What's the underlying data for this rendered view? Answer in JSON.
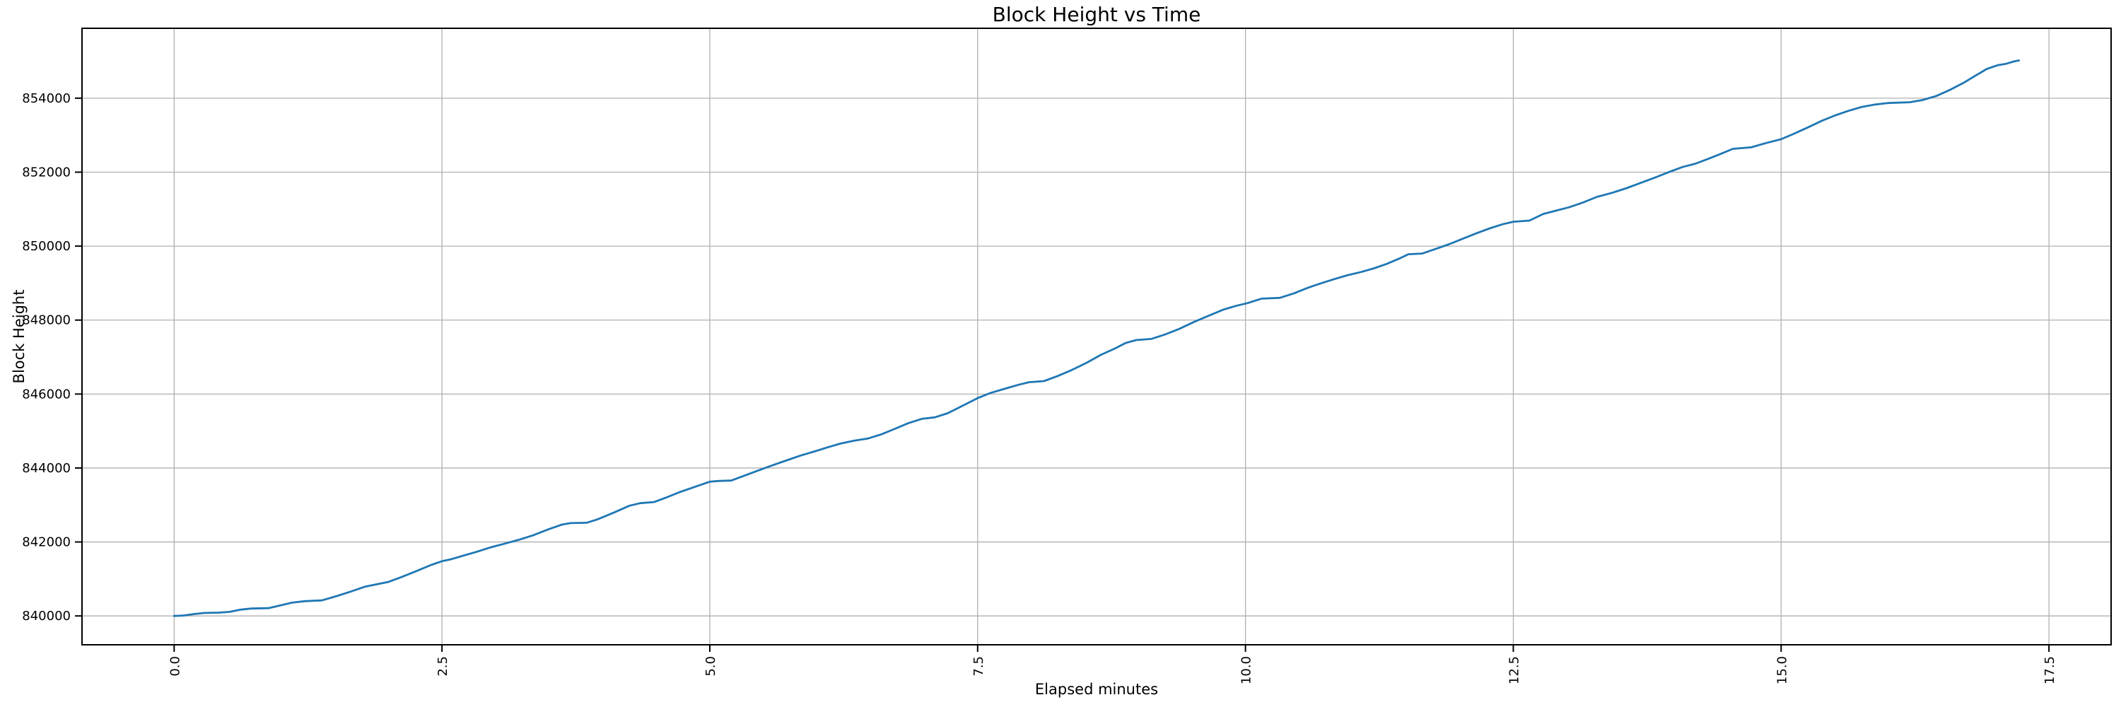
{
  "figure": {
    "background": "#ffffff"
  },
  "chart_data": {
    "type": "line",
    "title": "Block Height vs Time",
    "xlabel": "Elapsed minutes",
    "ylabel": "Block Height",
    "grid": true,
    "grid_color": "#b0b0b0",
    "axis_color": "#000000",
    "legend": false,
    "xlim": [
      -0.86,
      18.08
    ],
    "ylim": [
      839220,
      855890
    ],
    "xticks": {
      "values": [
        0.0,
        2.5,
        5.0,
        7.5,
        10.0,
        12.5,
        15.0,
        17.5
      ],
      "labels": [
        "0.0",
        "2.5",
        "5.0",
        "7.5",
        "10.0",
        "12.5",
        "15.0",
        "17.5"
      ],
      "rotation_deg": 90
    },
    "yticks": {
      "values": [
        840000,
        842000,
        844000,
        846000,
        848000,
        850000,
        852000,
        854000
      ],
      "labels": [
        "840000",
        "842000",
        "844000",
        "846000",
        "848000",
        "850000",
        "852000",
        "854000"
      ]
    },
    "series": [
      {
        "name": "block-height",
        "color": "#1f77b4",
        "points": [
          [
            0.0,
            840000
          ],
          [
            0.08,
            840010
          ],
          [
            0.18,
            840050
          ],
          [
            0.28,
            840080
          ],
          [
            0.42,
            840090
          ],
          [
            0.52,
            840110
          ],
          [
            0.62,
            840170
          ],
          [
            0.72,
            840200
          ],
          [
            0.88,
            840210
          ],
          [
            1.0,
            840290
          ],
          [
            1.1,
            840360
          ],
          [
            1.22,
            840400
          ],
          [
            1.38,
            840420
          ],
          [
            1.52,
            840540
          ],
          [
            1.65,
            840660
          ],
          [
            1.78,
            840790
          ],
          [
            1.88,
            840850
          ],
          [
            2.0,
            840920
          ],
          [
            2.12,
            841050
          ],
          [
            2.25,
            841200
          ],
          [
            2.4,
            841380
          ],
          [
            2.5,
            841480
          ],
          [
            2.58,
            841530
          ],
          [
            2.7,
            841630
          ],
          [
            2.82,
            841730
          ],
          [
            2.95,
            841850
          ],
          [
            3.08,
            841950
          ],
          [
            3.22,
            842060
          ],
          [
            3.35,
            842180
          ],
          [
            3.5,
            842350
          ],
          [
            3.62,
            842470
          ],
          [
            3.7,
            842510
          ],
          [
            3.85,
            842520
          ],
          [
            3.95,
            842610
          ],
          [
            4.1,
            842790
          ],
          [
            4.25,
            842980
          ],
          [
            4.35,
            843050
          ],
          [
            4.48,
            843080
          ],
          [
            4.6,
            843210
          ],
          [
            4.72,
            843350
          ],
          [
            4.85,
            843480
          ],
          [
            5.0,
            843630
          ],
          [
            5.08,
            843650
          ],
          [
            5.2,
            843660
          ],
          [
            5.32,
            843790
          ],
          [
            5.45,
            843930
          ],
          [
            5.6,
            844090
          ],
          [
            5.72,
            844210
          ],
          [
            5.85,
            844340
          ],
          [
            5.98,
            844450
          ],
          [
            6.1,
            844560
          ],
          [
            6.22,
            844660
          ],
          [
            6.35,
            844740
          ],
          [
            6.48,
            844800
          ],
          [
            6.6,
            844910
          ],
          [
            6.72,
            845050
          ],
          [
            6.85,
            845210
          ],
          [
            6.98,
            845330
          ],
          [
            7.1,
            845370
          ],
          [
            7.22,
            845480
          ],
          [
            7.35,
            845670
          ],
          [
            7.5,
            845890
          ],
          [
            7.62,
            846030
          ],
          [
            7.75,
            846140
          ],
          [
            7.88,
            846250
          ],
          [
            7.98,
            846320
          ],
          [
            8.12,
            846350
          ],
          [
            8.25,
            846490
          ],
          [
            8.38,
            846650
          ],
          [
            8.52,
            846850
          ],
          [
            8.65,
            847060
          ],
          [
            8.78,
            847230
          ],
          [
            8.88,
            847380
          ],
          [
            8.98,
            847460
          ],
          [
            9.12,
            847490
          ],
          [
            9.25,
            847610
          ],
          [
            9.38,
            847760
          ],
          [
            9.52,
            847950
          ],
          [
            9.65,
            848110
          ],
          [
            9.8,
            848290
          ],
          [
            9.92,
            848390
          ],
          [
            10.02,
            848460
          ],
          [
            10.15,
            848580
          ],
          [
            10.32,
            848600
          ],
          [
            10.45,
            848720
          ],
          [
            10.58,
            848870
          ],
          [
            10.7,
            848990
          ],
          [
            10.82,
            849100
          ],
          [
            10.95,
            849210
          ],
          [
            11.08,
            849300
          ],
          [
            11.2,
            849400
          ],
          [
            11.32,
            849520
          ],
          [
            11.45,
            849680
          ],
          [
            11.52,
            849780
          ],
          [
            11.65,
            849800
          ],
          [
            11.78,
            849930
          ],
          [
            11.9,
            850050
          ],
          [
            12.02,
            850190
          ],
          [
            12.15,
            850340
          ],
          [
            12.28,
            850480
          ],
          [
            12.4,
            850590
          ],
          [
            12.5,
            850660
          ],
          [
            12.65,
            850690
          ],
          [
            12.78,
            850870
          ],
          [
            12.9,
            850960
          ],
          [
            13.02,
            851050
          ],
          [
            13.15,
            851180
          ],
          [
            13.28,
            851330
          ],
          [
            13.42,
            851440
          ],
          [
            13.55,
            851560
          ],
          [
            13.68,
            851700
          ],
          [
            13.82,
            851850
          ],
          [
            13.95,
            852000
          ],
          [
            14.08,
            852140
          ],
          [
            14.2,
            852230
          ],
          [
            14.32,
            852360
          ],
          [
            14.45,
            852510
          ],
          [
            14.55,
            852630
          ],
          [
            14.72,
            852670
          ],
          [
            14.85,
            852780
          ],
          [
            15.0,
            852890
          ],
          [
            15.12,
            853040
          ],
          [
            15.25,
            853210
          ],
          [
            15.38,
            853390
          ],
          [
            15.5,
            853530
          ],
          [
            15.62,
            853650
          ],
          [
            15.75,
            853760
          ],
          [
            15.88,
            853830
          ],
          [
            16.0,
            853870
          ],
          [
            16.2,
            853890
          ],
          [
            16.32,
            853950
          ],
          [
            16.45,
            854060
          ],
          [
            16.58,
            854230
          ],
          [
            16.7,
            854410
          ],
          [
            16.82,
            854620
          ],
          [
            16.92,
            854790
          ],
          [
            17.02,
            854890
          ],
          [
            17.1,
            854930
          ],
          [
            17.18,
            855000
          ],
          [
            17.22,
            855020
          ]
        ]
      }
    ]
  }
}
